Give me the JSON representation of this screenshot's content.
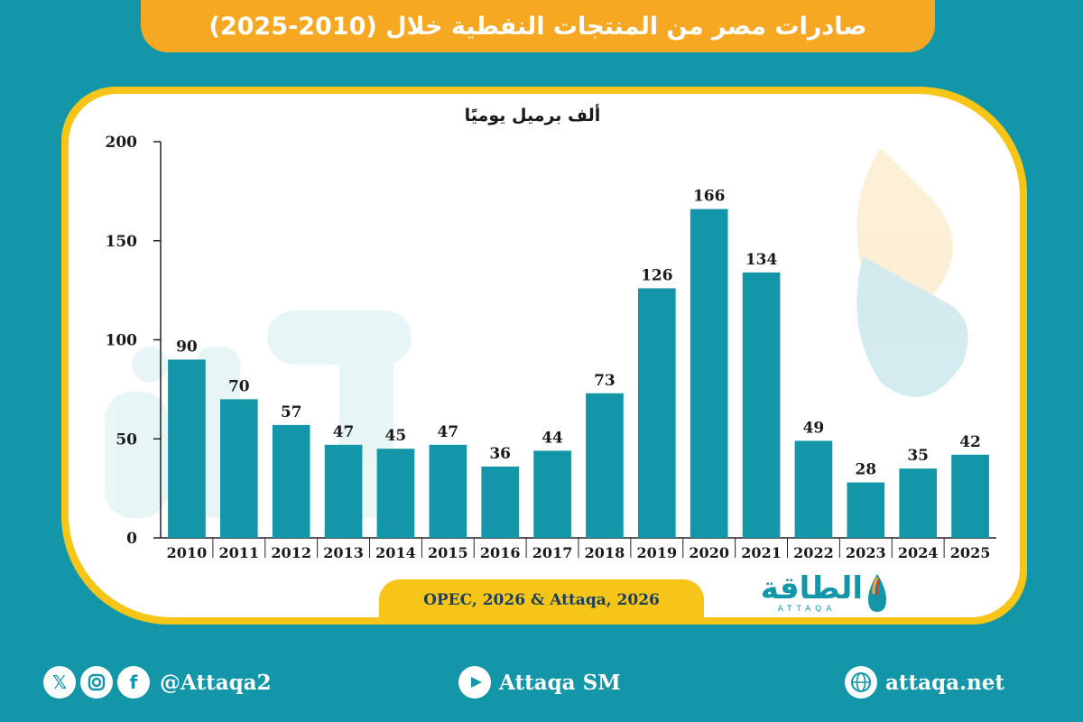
{
  "header": {
    "title": "صادرات مصر من المنتجات النفطية خلال (2010-2025)"
  },
  "colors": {
    "background": "#1396a8",
    "banner": "#f7a823",
    "frame": "#f7c518",
    "bar": "#1396a8",
    "text": "#1a1a1a"
  },
  "chart_data": {
    "type": "bar",
    "title": "صادرات مصر من المنتجات النفطية خلال (2010-2025)",
    "ylabel": "ألف برميل يوميًا",
    "xlabel": "",
    "categories": [
      "2010",
      "2011",
      "2012",
      "2013",
      "2014",
      "2015",
      "2016",
      "2017",
      "2018",
      "2019",
      "2020",
      "2021",
      "2022",
      "2023",
      "2024",
      "2025"
    ],
    "values": [
      90,
      70,
      57,
      47,
      45,
      47,
      36,
      44,
      73,
      126,
      166,
      134,
      49,
      28,
      35,
      42
    ],
    "ylim": [
      0,
      200
    ],
    "yticks": [
      0,
      50,
      100,
      150,
      200
    ],
    "grid": false,
    "legend": "none",
    "data_labels": true
  },
  "source": {
    "text": "OPEC, 2026 & Attaqa, 2026"
  },
  "logo": {
    "name": "الطاقة",
    "latin": "ATTAQA"
  },
  "footer": {
    "social_handle": "@Attaqa2",
    "youtube_label": "Attaqa SM",
    "website": "attaqa.net",
    "icons": [
      "x-icon",
      "instagram-icon",
      "facebook-icon",
      "youtube-icon",
      "globe-icon"
    ]
  }
}
